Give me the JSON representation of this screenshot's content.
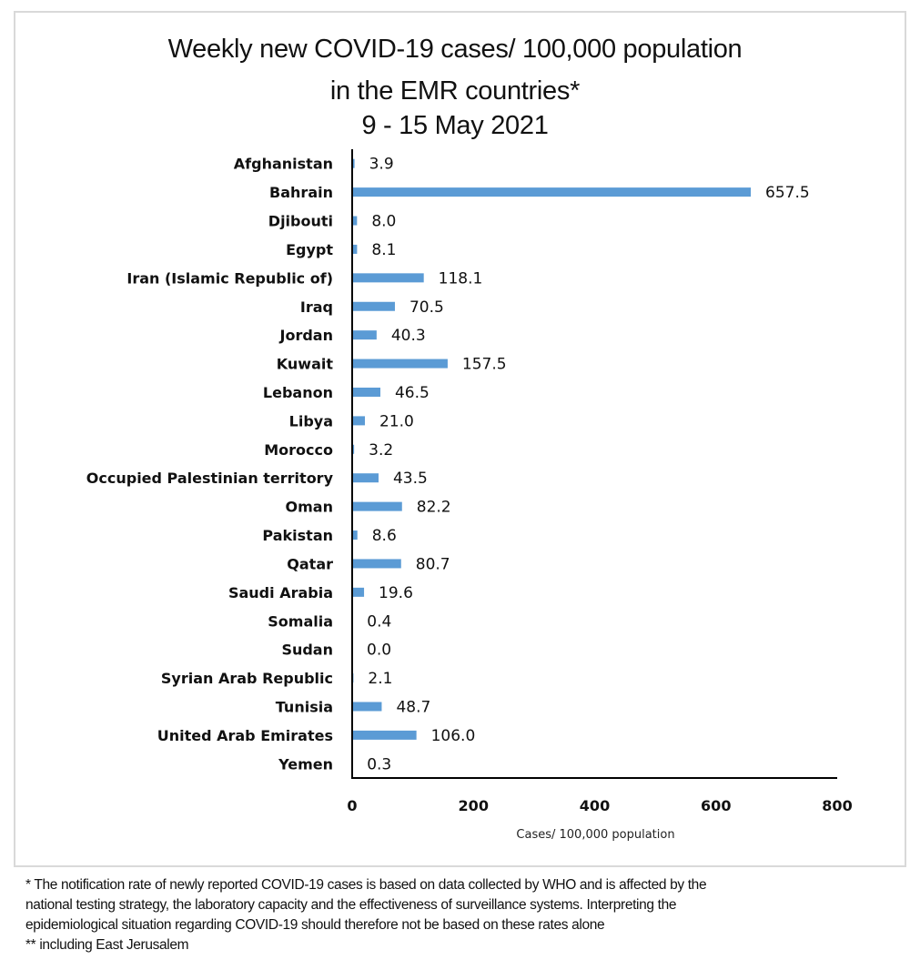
{
  "chart_data": {
    "type": "bar",
    "orientation": "horizontal",
    "title": "Weekly new COVID-19 cases/ 100,000 population",
    "title_line2": "in the EMR countries*",
    "subtitle": "9  - 15 May 2021",
    "xlabel": "Cases/ 100,000 population",
    "ylabel": "",
    "xlim": [
      0,
      800
    ],
    "x_ticks": [
      "0",
      "200",
      "400",
      "600",
      "800"
    ],
    "x_tick_values": [
      0,
      200,
      400,
      600,
      800
    ],
    "grid": false,
    "legend": "none",
    "bar_color": "#5b9bd5",
    "categories": [
      "Afghanistan",
      "Bahrain",
      "Djibouti",
      "Egypt",
      "Iran (Islamic Republic of)",
      "Iraq",
      "Jordan",
      "Kuwait",
      "Lebanon",
      "Libya",
      "Morocco",
      "Occupied Palestinian territory",
      "Oman",
      "Pakistan",
      "Qatar",
      "Saudi Arabia",
      "Somalia",
      "Sudan",
      "Syrian Arab Republic",
      "Tunisia",
      "United Arab Emirates",
      "Yemen"
    ],
    "values": [
      3.9,
      657.5,
      8.0,
      8.1,
      118.1,
      70.5,
      40.3,
      157.5,
      46.5,
      21.0,
      3.2,
      43.5,
      82.2,
      8.6,
      80.7,
      19.6,
      0.4,
      0.0,
      2.1,
      48.7,
      106.0,
      0.3
    ],
    "value_labels": [
      "3.9",
      "657.5",
      "8.0",
      "8.1",
      "118.1",
      "70.5",
      "40.3",
      "157.5",
      "46.5",
      "21.0",
      "3.2",
      "43.5",
      "82.2",
      "8.6",
      "80.7",
      "19.6",
      "0.4",
      "0.0",
      "2.1",
      "48.7",
      "106.0",
      "0.3"
    ]
  },
  "footnotes": [
    "* The notification rate of newly reported COVID-19 cases is based on data collected by WHO and is affected by the",
    "national testing strategy, the laboratory capacity and the effectiveness of surveillance systems. Interpreting the",
    "epidemiological situation regarding COVID-19 should therefore not be based on these rates alone",
    "** including East Jerusalem"
  ]
}
